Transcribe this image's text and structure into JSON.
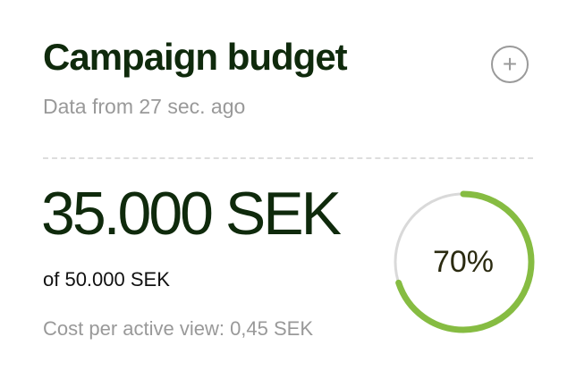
{
  "header": {
    "title": "Campaign budget",
    "subtitle": "Data from 27 sec. ago",
    "add_icon": "plus-circle-icon"
  },
  "budget": {
    "spent": "35.000 SEK",
    "total": "of 50.000 SEK",
    "cost_per_view": "Cost per active view: 0,45 SEK",
    "progress_label": "70%",
    "progress_value": 0.7
  },
  "colors": {
    "progress": "#86bc42",
    "track": "#d9d9d9",
    "title": "#0f2a0c"
  }
}
